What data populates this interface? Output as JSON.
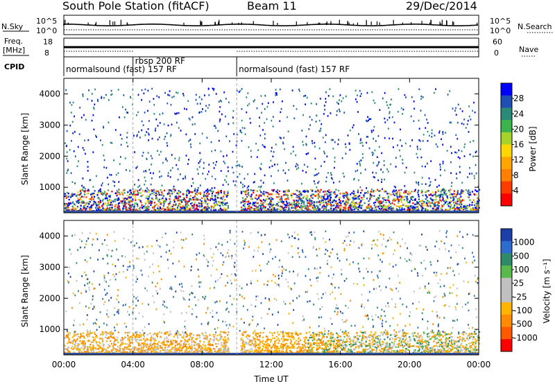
{
  "header": {
    "station": "South Pole Station (fitACF)",
    "beam": "Beam 11",
    "date": "29/Dec/2014"
  },
  "aux_panels": {
    "nsky": {
      "label": "N.Sky",
      "tick_top": "10^5",
      "tick_bottom": "10^0"
    },
    "nsearch": {
      "label": "N.Search",
      "tick_top": "10^5",
      "tick_bottom": "10^0"
    },
    "freq": {
      "label_line1": "Freq.",
      "label_line2": "[MHz]",
      "tick_top": "18",
      "tick_bottom": "8"
    },
    "nave": {
      "label": "Nave",
      "tick_top": "60",
      "tick_bottom": "0"
    },
    "cpid": {
      "label": "CPID",
      "segments": [
        {
          "text": "normalsound (fast) 157 RF",
          "start_hour": 0
        },
        {
          "text": "rbsp 200 RF",
          "start_hour": 4
        },
        {
          "text": "normalsound (fast) 157 RF",
          "start_hour": 10
        }
      ]
    }
  },
  "chart_data": [
    {
      "type": "heatmap",
      "parameter": "power",
      "ylabel": "Slant Range [km]",
      "xlabel": "",
      "xlim": [
        0,
        24
      ],
      "ylim": [
        180,
        4500
      ],
      "yticks": [
        "1000",
        "2000",
        "3000",
        "4000"
      ],
      "colorbar": {
        "label": "Power [dB]",
        "ticks": [
          "4",
          "8",
          "12",
          "16",
          "20",
          "24",
          "28"
        ],
        "colors": [
          "#0000ff",
          "#1e4fb4",
          "#2a8a78",
          "#3cb44b",
          "#a6d22a",
          "#ffd700",
          "#ffa500",
          "#ff7f00",
          "#ff3c00",
          "#ff0000"
        ]
      }
    },
    {
      "type": "heatmap",
      "parameter": "velocity",
      "ylabel": "Slant Range [km]",
      "xlabel": "Time UT",
      "xlim": [
        0,
        24
      ],
      "ylim": [
        180,
        4500
      ],
      "yticks": [
        "1000",
        "2000",
        "3000",
        "4000"
      ],
      "xticks": [
        "00:00",
        "04:00",
        "08:00",
        "12:00",
        "16:00",
        "20:00",
        "00:00"
      ],
      "colorbar": {
        "label": "Velocity [m s⁻¹]",
        "ticks": [
          "1000",
          "500",
          "100",
          "25",
          "-25",
          "-100",
          "-500",
          "-1000"
        ],
        "colors": [
          "#1c3fa8",
          "#2e6bd0",
          "#2f8a6a",
          "#5ab94b",
          "#c0c0c0",
          "#c0c0c0",
          "#ffb400",
          "#ff8c00",
          "#ff5a00",
          "#ff0000"
        ]
      }
    }
  ],
  "colors": {
    "scan_line": "#aaaaaa",
    "bottom_strip": "#3050a0"
  }
}
